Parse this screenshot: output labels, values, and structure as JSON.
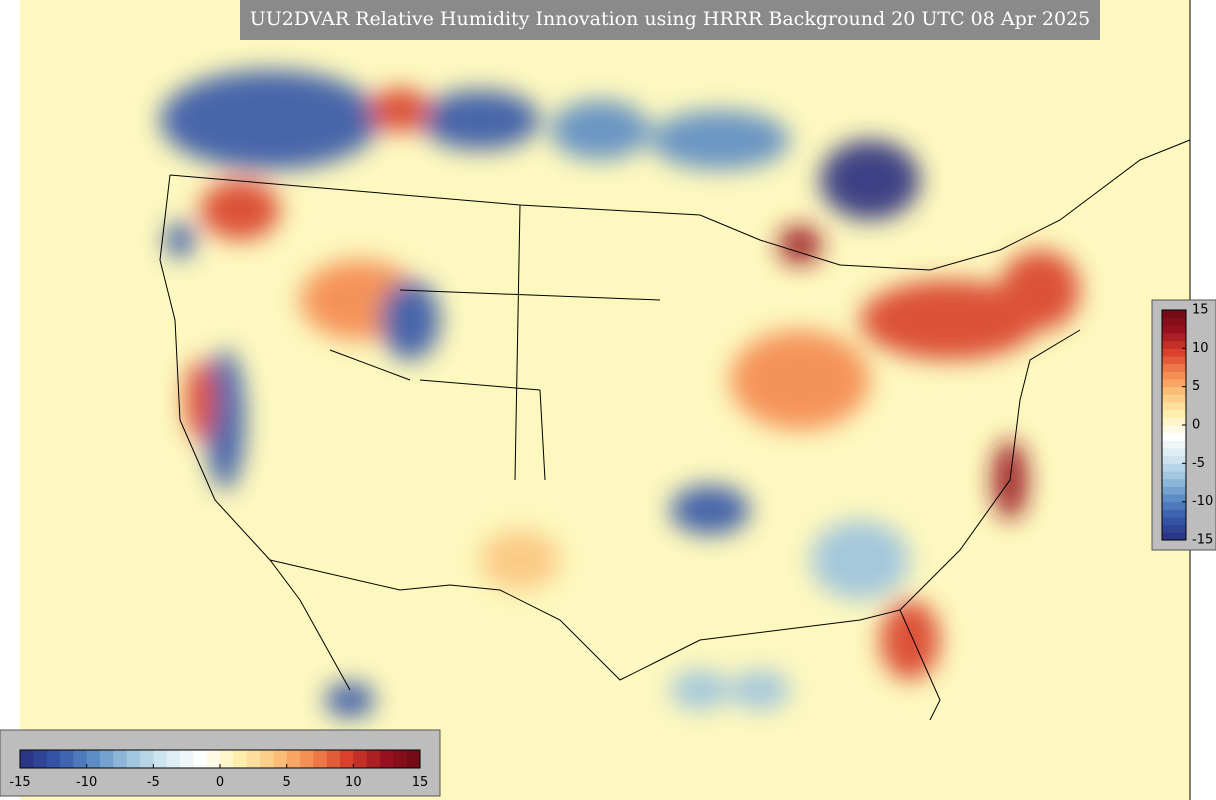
{
  "title": "UU2DVAR Relative Humidity Innovation using HRRR Background 20 UTC 08 Apr 2025",
  "colorbar": {
    "range": [
      -15,
      15
    ],
    "ticks": [
      -15,
      -10,
      -5,
      0,
      5,
      10,
      15
    ],
    "colors": [
      "#2a2f7f",
      "#3556a8",
      "#5b8cc4",
      "#9cc3df",
      "#d6e9f1",
      "#ffffff",
      "#fdf0b0",
      "#fbc67f",
      "#f4894f",
      "#d9402b",
      "#9a1220",
      "#6b0a14"
    ]
  }
}
